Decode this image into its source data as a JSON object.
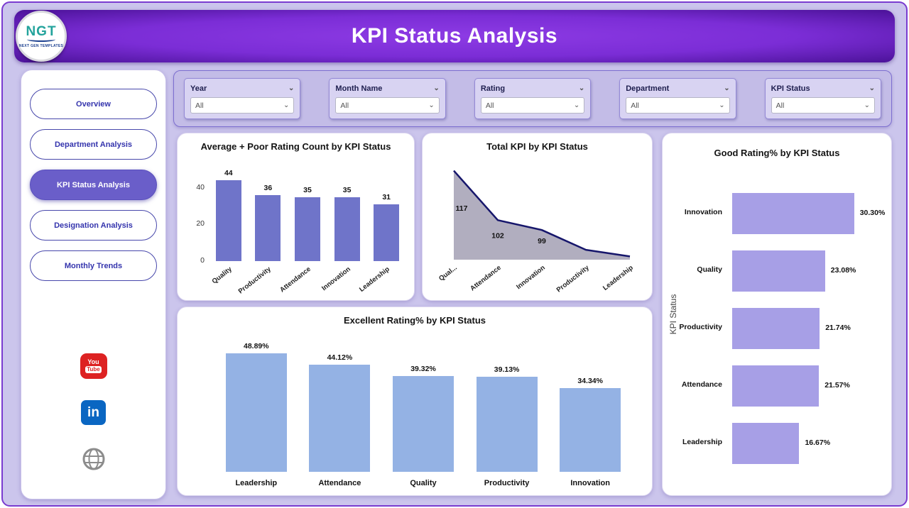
{
  "header": {
    "title": "KPI Status Analysis"
  },
  "logo": {
    "text": "NGT",
    "subtext": "NEXT GEN TEMPLATES"
  },
  "sidebar": {
    "items": [
      {
        "label": "Overview",
        "active": false
      },
      {
        "label": "Department Analysis",
        "active": false
      },
      {
        "label": "KPI Status Analysis",
        "active": true
      },
      {
        "label": "Designation Analysis",
        "active": false
      },
      {
        "label": "Monthly Trends",
        "active": false
      }
    ],
    "social": [
      "youtube",
      "linkedin",
      "website"
    ]
  },
  "filters": [
    {
      "label": "Year",
      "value": "All"
    },
    {
      "label": "Month Name",
      "value": "All"
    },
    {
      "label": "Rating",
      "value": "All"
    },
    {
      "label": "Department",
      "value": "All"
    },
    {
      "label": "KPI Status",
      "value": "All"
    }
  ],
  "theme": {
    "page_bg": "#cbc5ec",
    "panel_bg": "#c3bce7",
    "header_purple": "#7b2dd6",
    "header_purple_dark": "#4b1298",
    "active_nav_bg": "#6a5ec9",
    "nav_text": "#3434ad"
  },
  "chart_data": [
    {
      "id": "avg_poor",
      "type": "bar",
      "title": "Average + Poor Rating Count by KPI Status",
      "categories": [
        "Quality",
        "Productivity",
        "Attendance",
        "Innovation",
        "Leadership"
      ],
      "values": [
        44,
        36,
        35,
        35,
        31
      ],
      "data_labels": [
        "44",
        "36",
        "35",
        "35",
        "31"
      ],
      "ylim": [
        0,
        48
      ],
      "yticks": [
        0,
        20,
        40
      ],
      "bar_color": "#6f74c9"
    },
    {
      "id": "total_kpi",
      "type": "area",
      "title": "Total KPI by KPI Status",
      "categories": [
        "Qual...",
        "Attendance",
        "Innovation",
        "Productivity",
        "Leadership"
      ],
      "values": [
        117,
        102,
        99,
        93,
        91
      ],
      "data_labels": [
        "117",
        "102",
        "99",
        "",
        ""
      ],
      "ylim": [
        90,
        118
      ],
      "line_color": "#16166b",
      "fill_color": "rgba(125,120,148,0.6)"
    },
    {
      "id": "good_rating",
      "type": "hbar",
      "title": "Good Rating% by KPI Status",
      "categories": [
        "Innovation",
        "Quality",
        "Productivity",
        "Attendance",
        "Leadership"
      ],
      "values": [
        30.3,
        23.08,
        21.74,
        21.57,
        16.67
      ],
      "data_labels": [
        "30.30%",
        "23.08%",
        "21.74%",
        "21.57%",
        "16.67%"
      ],
      "xlim": [
        0,
        33
      ],
      "ylabel": "KPI Status",
      "bar_color": "#a79fe6"
    },
    {
      "id": "excellent",
      "type": "bar",
      "title": "Excellent Rating% by KPI Status",
      "categories": [
        "Leadership",
        "Attendance",
        "Quality",
        "Productivity",
        "Innovation"
      ],
      "values": [
        48.89,
        44.12,
        39.32,
        39.13,
        34.34
      ],
      "data_labels": [
        "48.89%",
        "44.12%",
        "39.32%",
        "39.13%",
        "34.34%"
      ],
      "ylim": [
        0,
        54
      ],
      "bar_color": "#94b2e4"
    }
  ]
}
